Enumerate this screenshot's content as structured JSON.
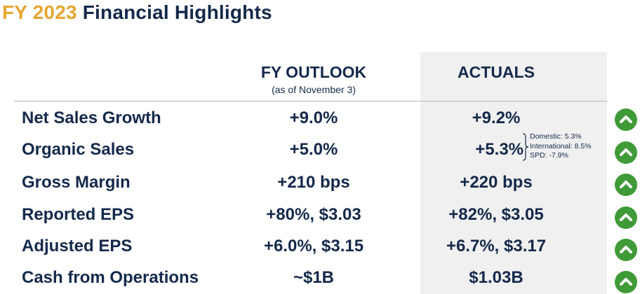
{
  "title": {
    "year": "FY 2023",
    "rest": "Financial Highlights"
  },
  "headers": {
    "outlook": "FY OUTLOOK",
    "outlook_sub": "(as of November 3)",
    "actuals": "ACTUALS"
  },
  "rows": [
    {
      "label": "Net Sales Growth",
      "outlook": "+9.0%",
      "actual": "+9.2%",
      "indicator": "chevron-up-icon"
    },
    {
      "label": "Organic Sales",
      "outlook": "+5.0%",
      "actual": "+5.3%",
      "indicator": "chevron-up-icon",
      "breakdown": [
        "Domestic: 5.3%",
        "International: 8.5%",
        "SPD: -7.9%"
      ]
    },
    {
      "label": "Gross Margin",
      "outlook": "+210 bps",
      "actual": "+220 bps",
      "indicator": "chevron-up-icon"
    },
    {
      "label": "Reported EPS",
      "outlook": "+80%, $3.03",
      "actual": "+82%, $3.05",
      "indicator": "chevron-up-icon"
    },
    {
      "label": "Adjusted EPS",
      "outlook": "+6.0%, $3.15",
      "actual": "+6.7%, $3.17",
      "indicator": "chevron-up-icon"
    },
    {
      "label": "Cash from Operations",
      "outlook": "~$1B",
      "actual": "$1.03B",
      "indicator": "chevron-up-icon"
    }
  ],
  "colors": {
    "title_accent": "#e6a532",
    "navy": "#14294b",
    "indicator_green": "#3f9a38",
    "actuals_panel": "#f0f0f0"
  }
}
